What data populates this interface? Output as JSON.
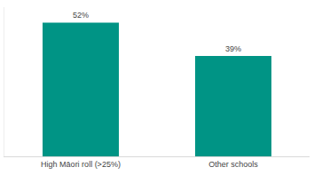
{
  "chart_data": {
    "type": "bar",
    "categories": [
      "High Māori roll (>25%)",
      "Other schools"
    ],
    "values": [
      52,
      39
    ],
    "value_labels": [
      "52%",
      "39%"
    ],
    "color": "#009485",
    "ylim": [
      0,
      58
    ],
    "data_labels": true,
    "grid": false,
    "tick_labels": "x"
  }
}
